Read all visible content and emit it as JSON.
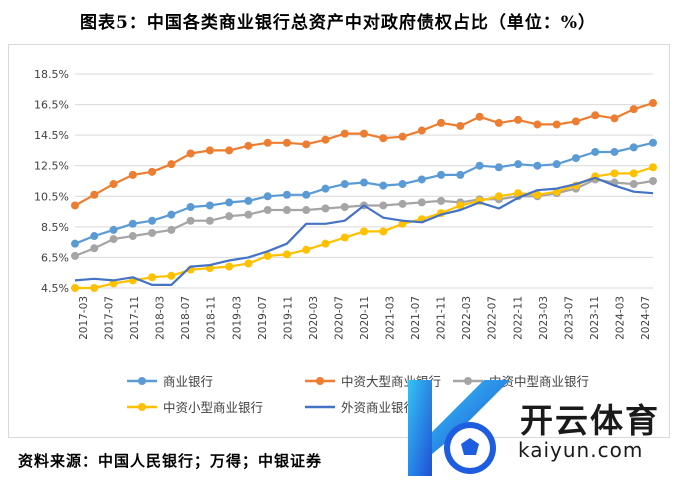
{
  "title": "图表5：中国各类商业银行总资产中对政府债权占比（单位：%）",
  "source": "资料来源：中国人民银行；万得；中银证券",
  "watermark": {
    "name_cn": "开云体育",
    "name_en": "kaiyun.com"
  },
  "chart_data": {
    "type": "line",
    "title": "中国各类商业银行总资产中对政府债权占比（单位：%）",
    "ylim": [
      4.5,
      18.5
    ],
    "yticks": [
      "4.5%",
      "6.5%",
      "8.5%",
      "10.5%",
      "12.5%",
      "14.5%",
      "16.5%",
      "18.5%"
    ],
    "ytick_values": [
      4.5,
      6.5,
      8.5,
      10.5,
      12.5,
      14.5,
      16.5,
      18.5
    ],
    "xlabels": [
      "2017-03",
      "2017-07",
      "2017-11",
      "2018-03",
      "2018-07",
      "2018-11",
      "2019-03",
      "2019-07",
      "2019-11",
      "2020-03",
      "2020-07",
      "2020-11",
      "2021-03",
      "2021-07",
      "2021-11",
      "2022-03",
      "2022-07",
      "2022-11",
      "2023-03",
      "2023-07",
      "2023-11",
      "2024-03",
      "2024-07"
    ],
    "grid": true,
    "legend": "bottom",
    "series": [
      {
        "name": "商业银行",
        "color": "#5b9bd5",
        "marker": true,
        "values": [
          7.4,
          7.9,
          8.3,
          8.7,
          8.9,
          9.3,
          9.8,
          9.9,
          10.1,
          10.2,
          10.5,
          10.6,
          10.6,
          11.0,
          11.3,
          11.4,
          11.2,
          11.3,
          11.6,
          11.9,
          11.9,
          12.5,
          12.4,
          12.6,
          12.5,
          12.6,
          13.0,
          13.4,
          13.4,
          13.7,
          14.0
        ]
      },
      {
        "name": "中资大型商业银行",
        "color": "#ed7d31",
        "marker": true,
        "values": [
          9.9,
          10.6,
          11.3,
          11.9,
          12.1,
          12.6,
          13.3,
          13.5,
          13.5,
          13.8,
          14.0,
          14.0,
          13.9,
          14.2,
          14.6,
          14.6,
          14.3,
          14.4,
          14.8,
          15.3,
          15.1,
          15.7,
          15.3,
          15.5,
          15.2,
          15.2,
          15.4,
          15.8,
          15.6,
          16.2,
          16.6
        ]
      },
      {
        "name": "中资中型商业银行",
        "color": "#a5a5a5",
        "marker": true,
        "values": [
          6.6,
          7.1,
          7.7,
          7.9,
          8.1,
          8.3,
          8.9,
          8.9,
          9.2,
          9.3,
          9.6,
          9.6,
          9.6,
          9.7,
          9.8,
          9.9,
          9.9,
          10.0,
          10.1,
          10.2,
          10.1,
          10.3,
          10.3,
          10.5,
          10.5,
          10.7,
          11.0,
          11.6,
          11.4,
          11.3,
          11.5
        ]
      },
      {
        "name": "中资小型商业银行",
        "color": "#ffc000",
        "marker": true,
        "values": [
          4.5,
          4.5,
          4.8,
          5.0,
          5.2,
          5.3,
          5.7,
          5.8,
          5.9,
          6.1,
          6.6,
          6.7,
          7.0,
          7.4,
          7.8,
          8.2,
          8.2,
          8.7,
          9.0,
          9.4,
          9.9,
          10.2,
          10.5,
          10.7,
          10.6,
          10.8,
          11.2,
          11.8,
          12.0,
          12.0,
          12.4
        ]
      },
      {
        "name": "外资商业银行",
        "color": "#4472c4",
        "marker": false,
        "values": [
          5.0,
          5.1,
          5.0,
          5.2,
          4.7,
          4.7,
          5.9,
          6.0,
          6.3,
          6.5,
          6.9,
          7.4,
          8.7,
          8.7,
          8.9,
          9.9,
          9.1,
          8.9,
          8.8,
          9.3,
          9.6,
          10.1,
          9.7,
          10.4,
          10.9,
          11.0,
          11.3,
          11.7,
          11.2,
          10.8,
          10.7
        ]
      }
    ]
  }
}
